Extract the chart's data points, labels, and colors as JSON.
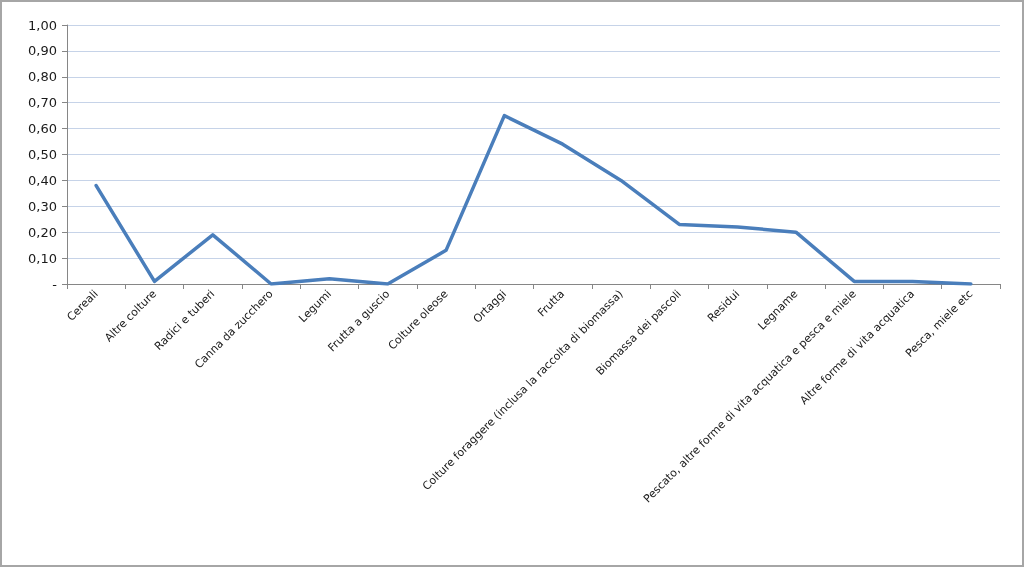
{
  "chart_data": {
    "type": "line",
    "categories": [
      "Cereali",
      "Altre colture",
      "Radici e tuberi",
      "Canna da zucchero",
      "Legumi",
      "Frutta a guscio",
      "Colture oleose",
      "Ortaggi",
      "Frutta",
      "Colture foraggere (inclusa la raccolta di biomassa)",
      "Biomassa dei pascoli",
      "Residui",
      "Legname",
      "Pescato, altre forme di vita acquatica e pesca e miele",
      "Altre forme di vita acquatica",
      "Pesca, miele etc"
    ],
    "series": [
      {
        "color": "#4a7ebb",
        "values": [
          0.38,
          0.01,
          0.19,
          0.0,
          0.02,
          0.0,
          0.13,
          0.65,
          0.54,
          0.4,
          0.23,
          0.22,
          0.2,
          0.01,
          0.01,
          0.0
        ]
      }
    ],
    "ylim": [
      0,
      1
    ],
    "yticks": [
      {
        "value": 0,
        "label": "-"
      },
      {
        "value": 0.1,
        "label": "0,10"
      },
      {
        "value": 0.2,
        "label": "0,20"
      },
      {
        "value": 0.3,
        "label": "0,30"
      },
      {
        "value": 0.4,
        "label": "0,40"
      },
      {
        "value": 0.5,
        "label": "0,50"
      },
      {
        "value": 0.6,
        "label": "0,60"
      },
      {
        "value": 0.7,
        "label": "0,70"
      },
      {
        "value": 0.8,
        "label": "0,80"
      },
      {
        "value": 0.9,
        "label": "0,90"
      },
      {
        "value": 1,
        "label": "1,00"
      }
    ],
    "grid": "y",
    "marker": "none",
    "line_style": "solid"
  }
}
